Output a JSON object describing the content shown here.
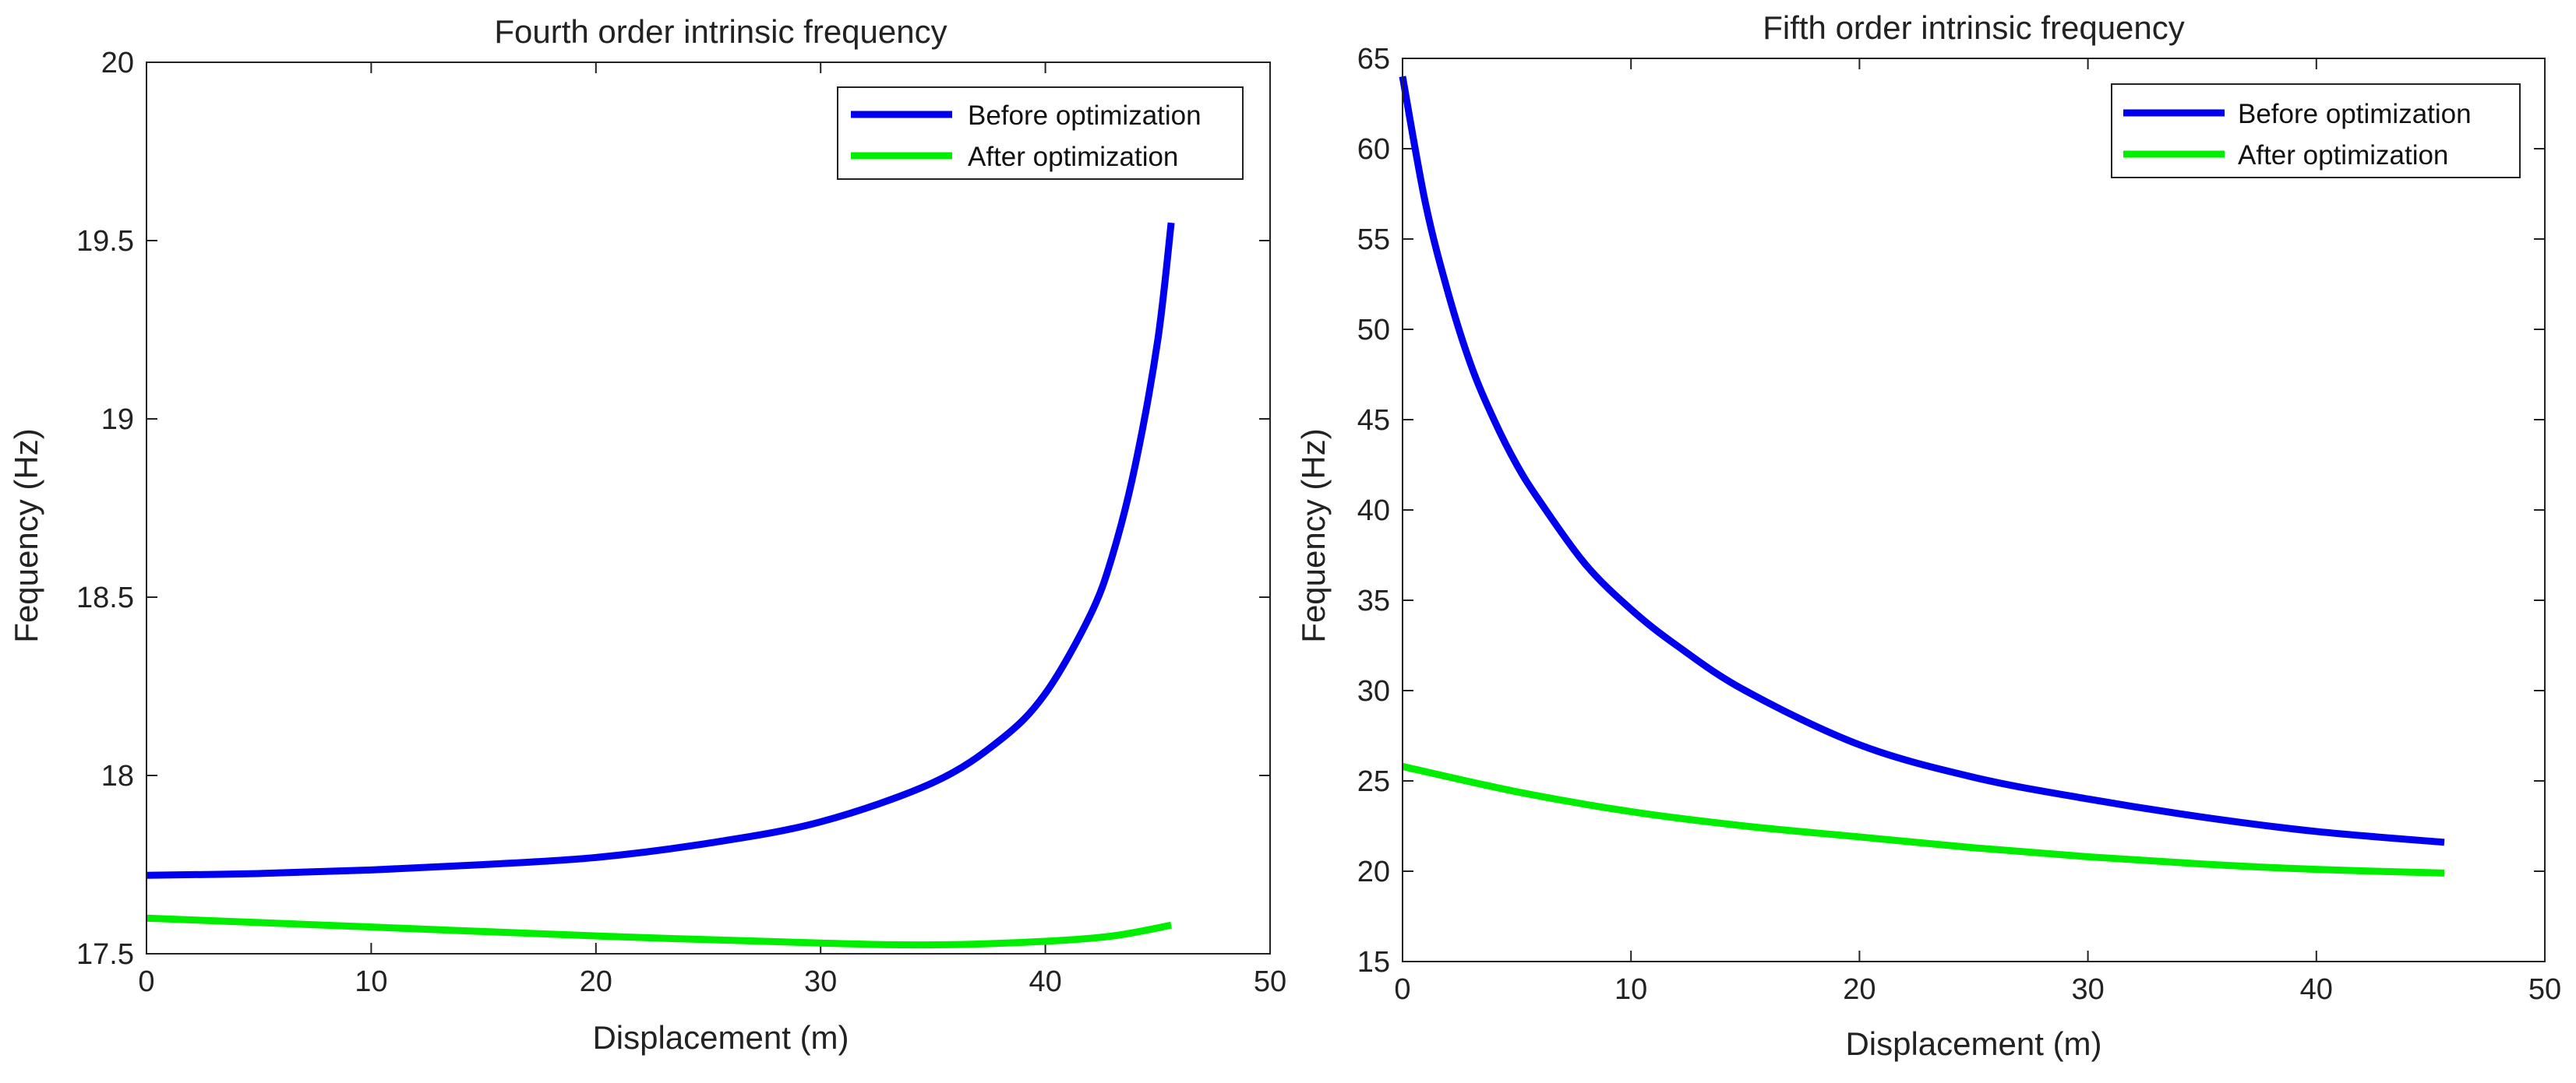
{
  "colors": {
    "before": "#0000ee",
    "after": "#00ee00",
    "axis": "#222222"
  },
  "chart_data": [
    {
      "type": "line",
      "title": "Fourth order intrinsic frequency",
      "xlabel": "Displacement (m)",
      "ylabel": "Fequency (Hz)",
      "xlim": [
        0,
        50
      ],
      "ylim": [
        17.5,
        20
      ],
      "xticks": [
        "0",
        "10",
        "20",
        "30",
        "40",
        "50"
      ],
      "yticks": [
        "17.5",
        "18",
        "18.5",
        "19",
        "19.5",
        "20"
      ],
      "legend_position": "top-right",
      "series": [
        {
          "name": "Before optimization",
          "x": [
            0,
            5,
            10,
            15,
            20,
            25,
            30,
            35,
            38,
            40,
            42,
            43,
            44,
            45,
            45.6
          ],
          "y": [
            17.72,
            17.725,
            17.735,
            17.75,
            17.77,
            17.81,
            17.87,
            17.98,
            18.1,
            18.23,
            18.45,
            18.62,
            18.87,
            19.22,
            19.55
          ]
        },
        {
          "name": "After optimization",
          "x": [
            0,
            10,
            20,
            30,
            35,
            40,
            43,
            45.6
          ],
          "y": [
            17.6,
            17.575,
            17.55,
            17.53,
            17.525,
            17.535,
            17.55,
            17.58
          ]
        }
      ]
    },
    {
      "type": "line",
      "title": "Fifth order intrinsic frequency",
      "xlabel": "Displacement (m)",
      "ylabel": "Fequency (Hz)",
      "xlim": [
        0,
        50
      ],
      "ylim": [
        15,
        65
      ],
      "xticks": [
        "0",
        "10",
        "20",
        "30",
        "40",
        "50"
      ],
      "yticks": [
        "15",
        "20",
        "25",
        "30",
        "35",
        "40",
        "45",
        "50",
        "55",
        "60",
        "65"
      ],
      "legend_position": "top-right",
      "series": [
        {
          "name": "Before optimization",
          "x": [
            0,
            1,
            2,
            3,
            4,
            5,
            6,
            8,
            10,
            12,
            15,
            20,
            25,
            30,
            35,
            40,
            45.6
          ],
          "y": [
            64,
            57,
            52,
            48,
            45,
            42.5,
            40.5,
            37,
            34.5,
            32.5,
            30,
            27,
            25.2,
            24,
            23,
            22.2,
            21.6
          ]
        },
        {
          "name": "After optimization",
          "x": [
            0,
            5,
            10,
            15,
            20,
            25,
            30,
            35,
            40,
            45.6
          ],
          "y": [
            25.8,
            24.4,
            23.3,
            22.5,
            21.9,
            21.3,
            20.8,
            20.4,
            20.1,
            19.9
          ]
        }
      ]
    }
  ]
}
